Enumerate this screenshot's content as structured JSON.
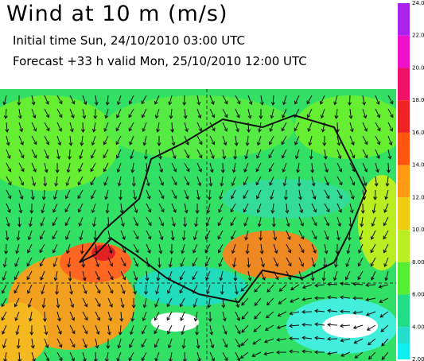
{
  "header": {
    "title": "Wind at 10 m (m/s)",
    "initial_time": "Initial time  Sun, 24/10/2010 03:00 UTC",
    "forecast": "Forecast +33 h  valid Mon, 25/10/2010 12:00 UTC"
  },
  "colorbar": {
    "labels": [
      "24.0",
      "22.0",
      "20.0",
      "18.0",
      "16.0",
      "14.0",
      "12.0",
      "10.0",
      "8.00",
      "6.00",
      "4.00",
      "2.00"
    ]
  }
}
